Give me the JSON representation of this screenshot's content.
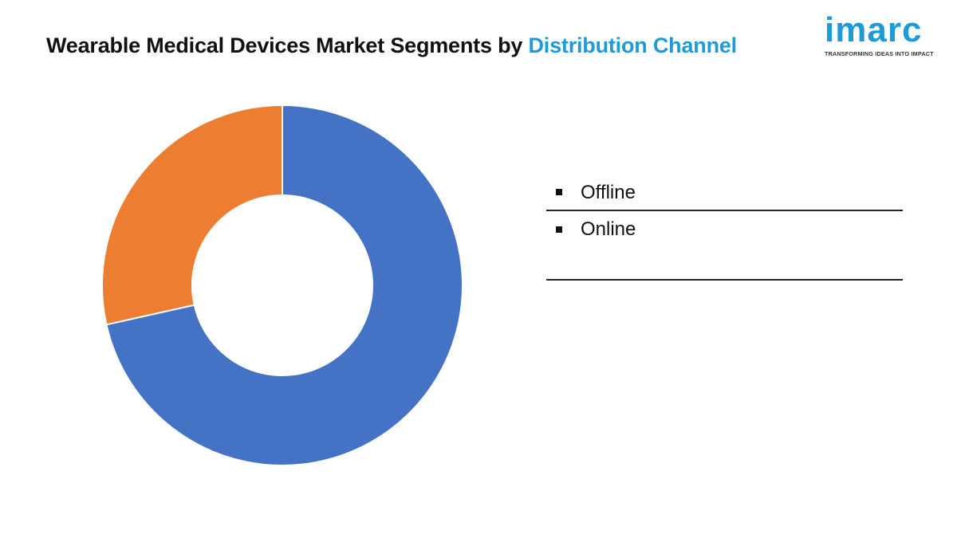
{
  "title": {
    "main": "Wearable Medical Devices Market Segments by ",
    "highlight": "Distribution Channel"
  },
  "logo": {
    "word": "imarc",
    "tagline": "TRANSFORMING IDEAS INTO IMPACT"
  },
  "chart_data": {
    "type": "pie",
    "variant": "donut",
    "categories": [
      "Offline",
      "Online"
    ],
    "values": [
      71.5,
      28.5
    ],
    "colors": [
      "#4472c4",
      "#ed7d31"
    ],
    "legend": "right"
  }
}
